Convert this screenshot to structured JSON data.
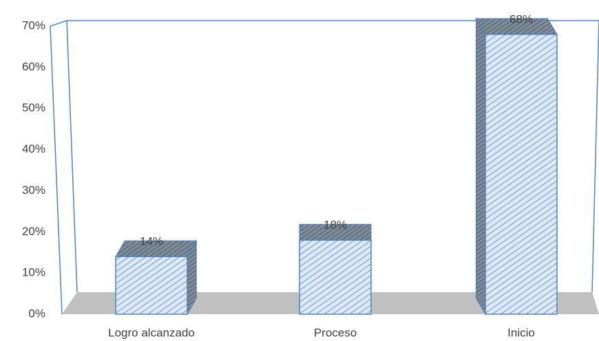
{
  "chart_data": {
    "type": "bar",
    "categories": [
      "Logro alcanzado",
      "Proceso",
      "Inicio"
    ],
    "values": [
      14,
      18,
      68
    ],
    "value_labels": [
      "14%",
      "18%",
      "68%"
    ],
    "color": "#4f81bd",
    "ylim": [
      0,
      70
    ],
    "yticks": [
      {
        "value": 0,
        "label": "0%"
      },
      {
        "value": 10,
        "label": "10%"
      },
      {
        "value": 20,
        "label": "20%"
      },
      {
        "value": 30,
        "label": "30%"
      },
      {
        "value": 40,
        "label": "40%"
      },
      {
        "value": 50,
        "label": "50%"
      },
      {
        "value": 60,
        "label": "60%"
      },
      {
        "value": 70,
        "label": "70%"
      }
    ],
    "grid": false
  }
}
